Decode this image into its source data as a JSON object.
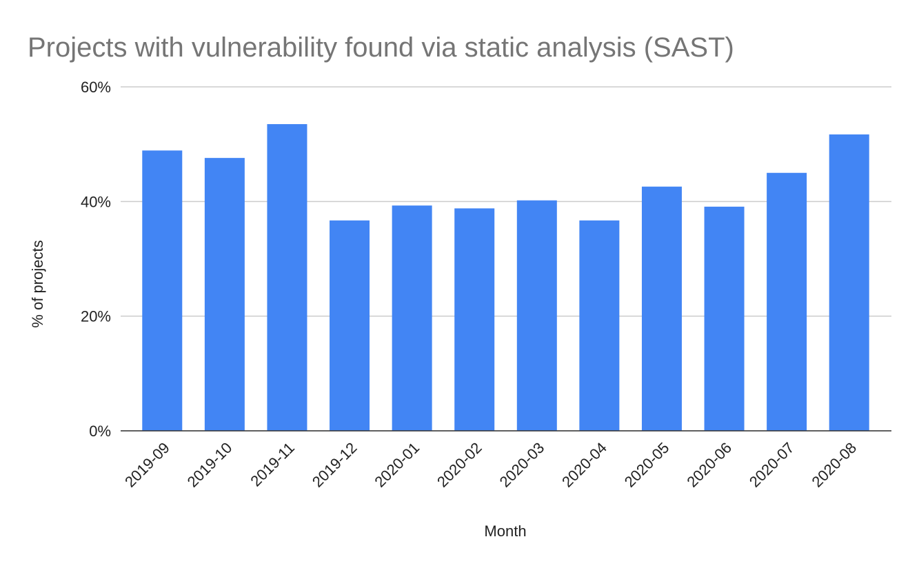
{
  "chart_data": {
    "type": "bar",
    "title": "Projects with vulnerability found via static analysis (SAST)",
    "x_label": "Month",
    "y_label": "% of projects",
    "categories": [
      "2019-09",
      "2019-10",
      "2019-11",
      "2019-12",
      "2020-01",
      "2020-02",
      "2020-03",
      "2020-04",
      "2020-05",
      "2020-06",
      "2020-07",
      "2020-08"
    ],
    "values": [
      48.9,
      47.6,
      53.5,
      36.7,
      39.3,
      38.8,
      40.2,
      36.7,
      42.6,
      39.1,
      45.0,
      51.7
    ],
    "color": "#4285f4",
    "ylim": [
      0,
      60
    ],
    "yticks": [
      {
        "value": 0,
        "label": "0%"
      },
      {
        "value": 20,
        "label": "20%"
      },
      {
        "value": 40,
        "label": "40%"
      },
      {
        "value": 60,
        "label": "60%"
      }
    ],
    "grid": true
  }
}
